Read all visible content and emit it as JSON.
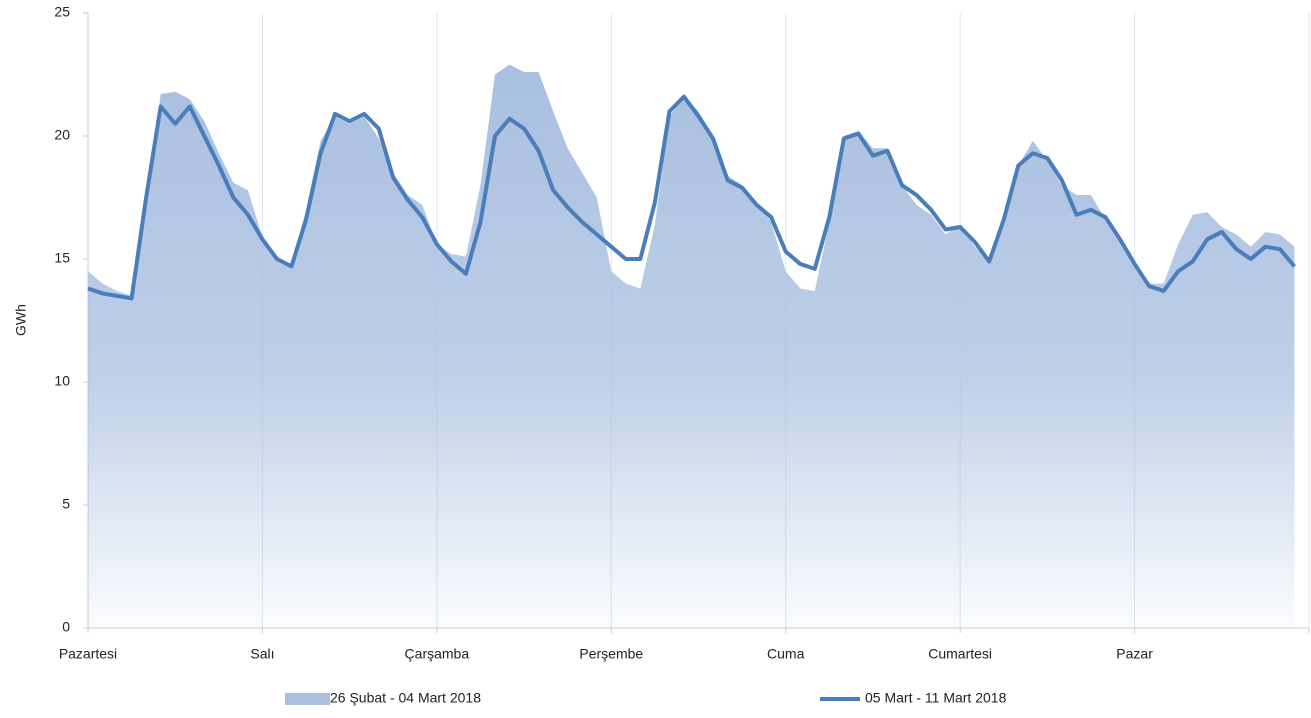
{
  "chart_data": {
    "type": "area-line",
    "y_label": "GWh",
    "categories": [
      "Pazartesi",
      null,
      null,
      null,
      null,
      null,
      null,
      null,
      null,
      null,
      null,
      null,
      "Salı",
      null,
      null,
      null,
      null,
      null,
      null,
      null,
      null,
      null,
      null,
      null,
      "Çarşamba",
      null,
      null,
      null,
      null,
      null,
      null,
      null,
      null,
      null,
      null,
      null,
      "Perşembe",
      null,
      null,
      null,
      null,
      null,
      null,
      null,
      null,
      null,
      null,
      null,
      "Cuma",
      null,
      null,
      null,
      null,
      null,
      null,
      null,
      null,
      null,
      null,
      null,
      "Cumartesi",
      null,
      null,
      null,
      null,
      null,
      null,
      null,
      null,
      null,
      null,
      null,
      "Pazar",
      null,
      null,
      null,
      null,
      null,
      null,
      null,
      null,
      null,
      null,
      null
    ],
    "series": [
      {
        "name": "26 Şubat - 04 Mart 2018",
        "kind": "area",
        "color": "#a9bfe0",
        "values": [
          14.5,
          14.0,
          13.7,
          13.5,
          17.0,
          21.7,
          21.8,
          21.5,
          20.6,
          19.3,
          18.1,
          17.8,
          15.9,
          15.1,
          14.7,
          17.0,
          19.8,
          20.8,
          20.5,
          20.8,
          19.9,
          18.5,
          17.6,
          17.2,
          15.6,
          15.2,
          15.1,
          18.0,
          22.5,
          22.9,
          22.6,
          22.6,
          21.0,
          19.5,
          18.5,
          17.5,
          14.5,
          14.0,
          13.8,
          16.4,
          20.8,
          21.6,
          21.0,
          20.0,
          18.4,
          18.0,
          17.3,
          16.5,
          14.5,
          13.8,
          13.7,
          16.5,
          20.0,
          20.2,
          19.5,
          19.5,
          18.0,
          17.2,
          16.8,
          16.0,
          16.4,
          15.5,
          14.9,
          16.5,
          18.8,
          19.8,
          19.0,
          18.0,
          17.6,
          17.6,
          16.6,
          15.8,
          14.8,
          14.0,
          14.0,
          15.6,
          16.8,
          16.9,
          16.3,
          16.0,
          15.5,
          16.1,
          16.0,
          15.5
        ]
      },
      {
        "name": "05 Mart - 11 Mart 2018",
        "kind": "line",
        "color": "#4a7ebb",
        "values": [
          13.8,
          13.6,
          13.5,
          13.4,
          17.5,
          21.2,
          20.5,
          21.2,
          20.0,
          18.8,
          17.5,
          16.8,
          15.8,
          15.0,
          14.7,
          16.6,
          19.3,
          20.9,
          20.6,
          20.9,
          20.3,
          18.3,
          17.4,
          16.7,
          15.6,
          14.9,
          14.4,
          16.5,
          20.0,
          20.7,
          20.3,
          19.4,
          17.8,
          17.1,
          16.5,
          16.0,
          15.5,
          15.0,
          15.0,
          17.3,
          21.0,
          21.6,
          20.8,
          19.9,
          18.2,
          17.9,
          17.2,
          16.7,
          15.3,
          14.8,
          14.6,
          16.7,
          19.9,
          20.1,
          19.2,
          19.4,
          18.0,
          17.6,
          17.0,
          16.2,
          16.3,
          15.7,
          14.9,
          16.6,
          18.8,
          19.3,
          19.1,
          18.2,
          16.8,
          17.0,
          16.7,
          15.8,
          14.8,
          13.9,
          13.7,
          14.5,
          14.9,
          15.8,
          16.1,
          15.4,
          15.0,
          15.5,
          15.4,
          14.7
        ]
      }
    ],
    "ylim": [
      0,
      25
    ],
    "yticks": [
      0,
      5,
      10,
      15,
      20,
      25
    ],
    "grid": "x",
    "legend": "bottom"
  }
}
